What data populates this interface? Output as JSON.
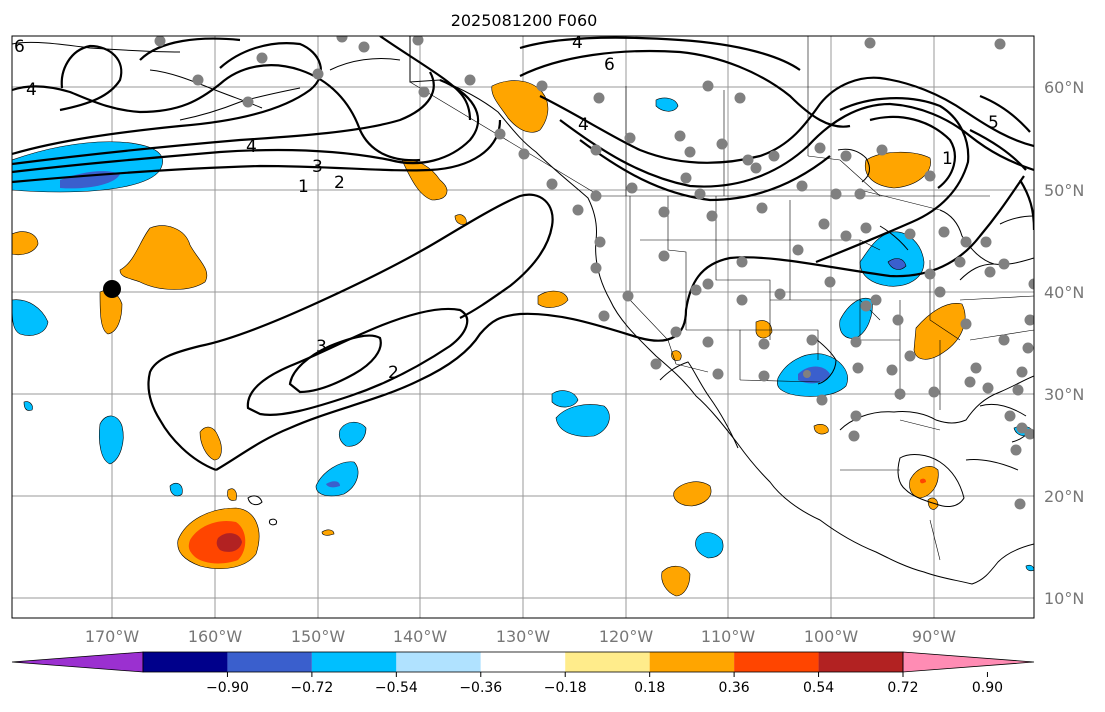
{
  "title": "2025081200 F060",
  "lat_labels": [
    "60°N",
    "50°N",
    "40°N",
    "30°N",
    "20°N",
    "10°N"
  ],
  "lon_labels": [
    "170°W",
    "160°W",
    "150°W",
    "140°W",
    "130°W",
    "120°W",
    "110°W",
    "100°W",
    "90°W"
  ],
  "colorbar": {
    "ticks": [
      "−0.90",
      "−0.72",
      "−0.54",
      "−0.36",
      "−0.18",
      "0.18",
      "0.36",
      "0.54",
      "0.72",
      "0.90"
    ],
    "colors": [
      "#9b30d0",
      "#00008b",
      "#3a5fcd",
      "#00bfff",
      "#b0e2ff",
      "#ffffff",
      "#ffec8b",
      "#ffa500",
      "#ff4500",
      "#b22222",
      "#ff8cb4"
    ]
  },
  "contour_labels": [
    "6",
    "4",
    "6",
    "4",
    "4",
    "3",
    "2",
    "1",
    "5",
    "1",
    "3",
    "2"
  ],
  "colors": {
    "gray_dot": "#808080",
    "marker": "#000000"
  }
}
